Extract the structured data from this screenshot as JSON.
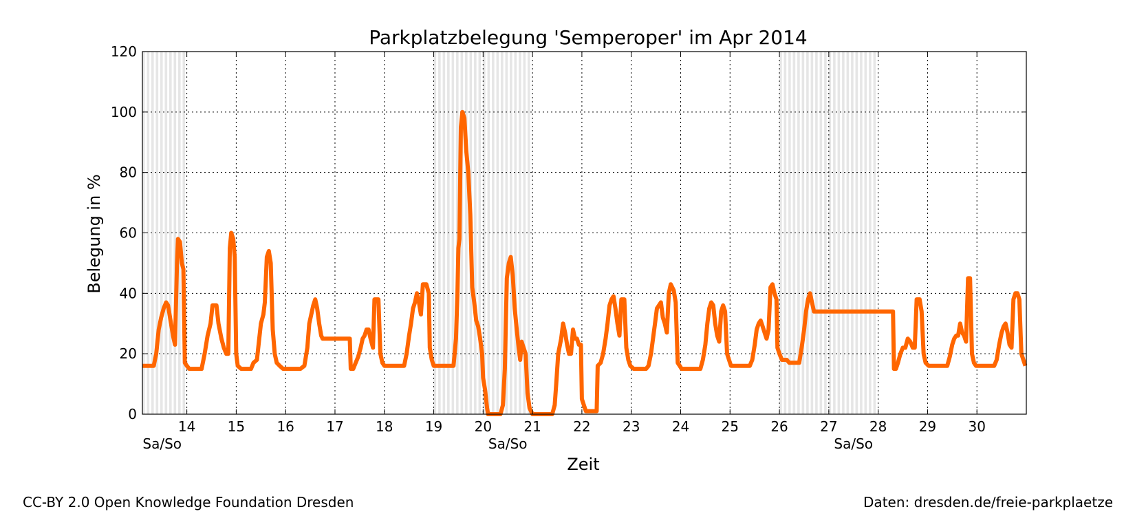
{
  "chart_data": {
    "type": "line",
    "title": "Parkplatzbelegung 'Semperoper' im Apr 2014",
    "xlabel": "Zeit",
    "ylabel": "Belegung in %",
    "xlim": [
      13.1,
      31.0
    ],
    "ylim": [
      0,
      120
    ],
    "x_ticks": [
      14,
      15,
      16,
      17,
      18,
      19,
      20,
      21,
      22,
      23,
      24,
      25,
      26,
      27,
      28,
      29,
      30
    ],
    "x_tick_labels": [
      "14",
      "15",
      "16",
      "17",
      "18",
      "19",
      "20",
      "21",
      "22",
      "23",
      "24",
      "25",
      "26",
      "27",
      "28",
      "29",
      "30"
    ],
    "y_ticks": [
      0,
      20,
      40,
      60,
      80,
      100,
      120
    ],
    "y_tick_labels": [
      "0",
      "20",
      "40",
      "60",
      "80",
      "100",
      "120"
    ],
    "grid": true,
    "weekend_label": "Sa/So",
    "weekend_ranges": [
      [
        13.1,
        14.0
      ],
      [
        19.0,
        21.0
      ],
      [
        26.0,
        28.0
      ]
    ],
    "weekend_label_x": [
      13.5,
      20.5,
      27.5
    ],
    "series": [
      {
        "color": "#ff6600",
        "points": [
          [
            13.1,
            16
          ],
          [
            13.33,
            16
          ],
          [
            13.38,
            20
          ],
          [
            13.43,
            28
          ],
          [
            13.48,
            32
          ],
          [
            13.53,
            35
          ],
          [
            13.58,
            37
          ],
          [
            13.62,
            36
          ],
          [
            13.67,
            31
          ],
          [
            13.72,
            26
          ],
          [
            13.76,
            23
          ],
          [
            13.8,
            50
          ],
          [
            13.82,
            58
          ],
          [
            13.86,
            57
          ],
          [
            13.9,
            50
          ],
          [
            13.93,
            48
          ],
          [
            13.96,
            17
          ],
          [
            14.0,
            16
          ],
          [
            14.05,
            15
          ],
          [
            14.3,
            15
          ],
          [
            14.36,
            20
          ],
          [
            14.42,
            26
          ],
          [
            14.48,
            30
          ],
          [
            14.52,
            36
          ],
          [
            14.6,
            36
          ],
          [
            14.64,
            30
          ],
          [
            14.7,
            25
          ],
          [
            14.75,
            22
          ],
          [
            14.8,
            20
          ],
          [
            14.84,
            20
          ],
          [
            14.87,
            55
          ],
          [
            14.9,
            60
          ],
          [
            14.94,
            58
          ],
          [
            14.97,
            52
          ],
          [
            15.0,
            20
          ],
          [
            15.03,
            16
          ],
          [
            15.1,
            15
          ],
          [
            15.3,
            15
          ],
          [
            15.35,
            17
          ],
          [
            15.42,
            18
          ],
          [
            15.46,
            24
          ],
          [
            15.5,
            30
          ],
          [
            15.55,
            33
          ],
          [
            15.58,
            37
          ],
          [
            15.62,
            52
          ],
          [
            15.66,
            54
          ],
          [
            15.7,
            50
          ],
          [
            15.74,
            28
          ],
          [
            15.78,
            20
          ],
          [
            15.82,
            17
          ],
          [
            15.88,
            16
          ],
          [
            15.95,
            15
          ],
          [
            16.3,
            15
          ],
          [
            16.38,
            16
          ],
          [
            16.44,
            22
          ],
          [
            16.48,
            30
          ],
          [
            16.52,
            33
          ],
          [
            16.56,
            36
          ],
          [
            16.6,
            38
          ],
          [
            16.64,
            35
          ],
          [
            16.68,
            30
          ],
          [
            16.72,
            26
          ],
          [
            16.75,
            25
          ],
          [
            17.3,
            25
          ],
          [
            17.32,
            15
          ],
          [
            17.37,
            15
          ],
          [
            17.42,
            17
          ],
          [
            17.47,
            19
          ],
          [
            17.52,
            22
          ],
          [
            17.56,
            25
          ],
          [
            17.6,
            26
          ],
          [
            17.64,
            28
          ],
          [
            17.68,
            28
          ],
          [
            17.72,
            25
          ],
          [
            17.77,
            22
          ],
          [
            17.8,
            38
          ],
          [
            17.88,
            38
          ],
          [
            17.92,
            20
          ],
          [
            17.96,
            17
          ],
          [
            18.0,
            16
          ],
          [
            18.4,
            16
          ],
          [
            18.45,
            20
          ],
          [
            18.5,
            26
          ],
          [
            18.54,
            30
          ],
          [
            18.58,
            35
          ],
          [
            18.62,
            37
          ],
          [
            18.66,
            40
          ],
          [
            18.7,
            37
          ],
          [
            18.74,
            33
          ],
          [
            18.78,
            43
          ],
          [
            18.85,
            43
          ],
          [
            18.9,
            40
          ],
          [
            18.92,
            22
          ],
          [
            18.96,
            18
          ],
          [
            19.0,
            16
          ],
          [
            19.4,
            16
          ],
          [
            19.45,
            25
          ],
          [
            19.48,
            40
          ],
          [
            19.5,
            55
          ],
          [
            19.52,
            58
          ],
          [
            19.55,
            95
          ],
          [
            19.58,
            100
          ],
          [
            19.62,
            98
          ],
          [
            19.66,
            87
          ],
          [
            19.7,
            80
          ],
          [
            19.74,
            66
          ],
          [
            19.78,
            42
          ],
          [
            19.82,
            37
          ],
          [
            19.86,
            31
          ],
          [
            19.9,
            29
          ],
          [
            19.94,
            25
          ],
          [
            19.98,
            20
          ],
          [
            20.0,
            12
          ],
          [
            20.04,
            8
          ],
          [
            20.08,
            2
          ],
          [
            20.1,
            0
          ],
          [
            20.35,
            0
          ],
          [
            20.4,
            3
          ],
          [
            20.44,
            15
          ],
          [
            20.48,
            45
          ],
          [
            20.52,
            50
          ],
          [
            20.56,
            52
          ],
          [
            20.6,
            46
          ],
          [
            20.64,
            35
          ],
          [
            20.68,
            28
          ],
          [
            20.72,
            22
          ],
          [
            20.75,
            18
          ],
          [
            20.78,
            24
          ],
          [
            20.82,
            22
          ],
          [
            20.86,
            20
          ],
          [
            20.9,
            7
          ],
          [
            20.94,
            2
          ],
          [
            21.0,
            0
          ],
          [
            21.4,
            0
          ],
          [
            21.45,
            3
          ],
          [
            21.48,
            10
          ],
          [
            21.52,
            20
          ],
          [
            21.58,
            25
          ],
          [
            21.62,
            30
          ],
          [
            21.66,
            27
          ],
          [
            21.7,
            23
          ],
          [
            21.74,
            20
          ],
          [
            21.78,
            20
          ],
          [
            21.82,
            28
          ],
          [
            21.86,
            25
          ],
          [
            21.9,
            25
          ],
          [
            21.94,
            23
          ],
          [
            21.98,
            23
          ],
          [
            22.0,
            5
          ],
          [
            22.04,
            3
          ],
          [
            22.08,
            1
          ],
          [
            22.3,
            1
          ],
          [
            22.32,
            16
          ],
          [
            22.38,
            17
          ],
          [
            22.43,
            20
          ],
          [
            22.48,
            25
          ],
          [
            22.52,
            30
          ],
          [
            22.56,
            36
          ],
          [
            22.6,
            38
          ],
          [
            22.64,
            39
          ],
          [
            22.68,
            35
          ],
          [
            22.72,
            30
          ],
          [
            22.76,
            26
          ],
          [
            22.8,
            38
          ],
          [
            22.86,
            38
          ],
          [
            22.9,
            22
          ],
          [
            22.94,
            18
          ],
          [
            22.98,
            16
          ],
          [
            23.05,
            15
          ],
          [
            23.3,
            15
          ],
          [
            23.35,
            16
          ],
          [
            23.4,
            20
          ],
          [
            23.44,
            25
          ],
          [
            23.48,
            30
          ],
          [
            23.52,
            35
          ],
          [
            23.56,
            36
          ],
          [
            23.6,
            37
          ],
          [
            23.64,
            32
          ],
          [
            23.68,
            30
          ],
          [
            23.72,
            27
          ],
          [
            23.76,
            40
          ],
          [
            23.8,
            43
          ],
          [
            23.86,
            41
          ],
          [
            23.9,
            37
          ],
          [
            23.94,
            17
          ],
          [
            23.98,
            16
          ],
          [
            24.02,
            15
          ],
          [
            24.4,
            15
          ],
          [
            24.45,
            18
          ],
          [
            24.5,
            23
          ],
          [
            24.54,
            30
          ],
          [
            24.58,
            35
          ],
          [
            24.62,
            37
          ],
          [
            24.66,
            36
          ],
          [
            24.7,
            30
          ],
          [
            24.74,
            26
          ],
          [
            24.78,
            24
          ],
          [
            24.82,
            34
          ],
          [
            24.86,
            36
          ],
          [
            24.9,
            34
          ],
          [
            24.94,
            20
          ],
          [
            24.98,
            18
          ],
          [
            25.02,
            16
          ],
          [
            25.4,
            16
          ],
          [
            25.45,
            18
          ],
          [
            25.5,
            23
          ],
          [
            25.54,
            28
          ],
          [
            25.58,
            30
          ],
          [
            25.62,
            31
          ],
          [
            25.66,
            29
          ],
          [
            25.7,
            27
          ],
          [
            25.74,
            25
          ],
          [
            25.78,
            28
          ],
          [
            25.82,
            42
          ],
          [
            25.86,
            43
          ],
          [
            25.9,
            40
          ],
          [
            25.94,
            38
          ],
          [
            25.96,
            22
          ],
          [
            26.0,
            20
          ],
          [
            26.05,
            18
          ],
          [
            26.15,
            18
          ],
          [
            26.2,
            17
          ],
          [
            26.4,
            17
          ],
          [
            26.45,
            22
          ],
          [
            26.5,
            28
          ],
          [
            26.54,
            34
          ],
          [
            26.58,
            38
          ],
          [
            26.62,
            40
          ],
          [
            26.66,
            37
          ],
          [
            26.7,
            34
          ],
          [
            28.3,
            34
          ],
          [
            28.32,
            15
          ],
          [
            28.36,
            15
          ],
          [
            28.4,
            17
          ],
          [
            28.45,
            20
          ],
          [
            28.5,
            22
          ],
          [
            28.55,
            22
          ],
          [
            28.6,
            25
          ],
          [
            28.65,
            24
          ],
          [
            28.7,
            22
          ],
          [
            28.74,
            22
          ],
          [
            28.78,
            38
          ],
          [
            28.84,
            38
          ],
          [
            28.88,
            34
          ],
          [
            28.92,
            20
          ],
          [
            28.96,
            17
          ],
          [
            29.02,
            16
          ],
          [
            29.4,
            16
          ],
          [
            29.45,
            19
          ],
          [
            29.5,
            23
          ],
          [
            29.54,
            25
          ],
          [
            29.58,
            26
          ],
          [
            29.62,
            26
          ],
          [
            29.66,
            30
          ],
          [
            29.7,
            27
          ],
          [
            29.74,
            26
          ],
          [
            29.78,
            24
          ],
          [
            29.82,
            45
          ],
          [
            29.86,
            45
          ],
          [
            29.9,
            20
          ],
          [
            29.94,
            17
          ],
          [
            29.98,
            16
          ],
          [
            30.35,
            16
          ],
          [
            30.4,
            18
          ],
          [
            30.45,
            23
          ],
          [
            30.5,
            27
          ],
          [
            30.54,
            29
          ],
          [
            30.58,
            30
          ],
          [
            30.62,
            27
          ],
          [
            30.66,
            23
          ],
          [
            30.7,
            22
          ],
          [
            30.74,
            38
          ],
          [
            30.78,
            40
          ],
          [
            30.82,
            40
          ],
          [
            30.86,
            38
          ],
          [
            30.9,
            20
          ],
          [
            30.94,
            18
          ],
          [
            30.98,
            16
          ]
        ]
      }
    ]
  },
  "footer": {
    "left": "CC-BY 2.0 Open Knowledge Foundation Dresden",
    "right": "Daten: dresden.de/freie-parkplaetze"
  }
}
